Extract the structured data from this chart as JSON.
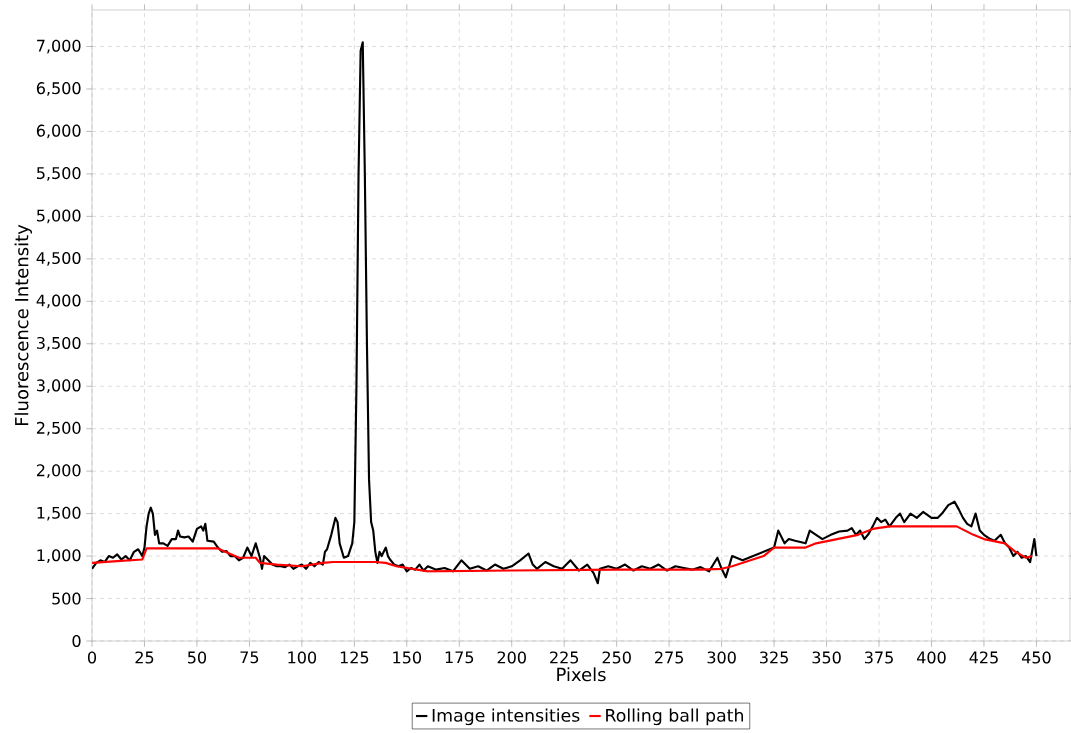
{
  "chart_data": {
    "type": "line",
    "xlabel": "Pixels",
    "ylabel": "Fluorescence Intensity",
    "xlim": [
      0,
      466
    ],
    "ylim": [
      0,
      7430
    ],
    "xticks": [
      0,
      25,
      50,
      75,
      100,
      125,
      150,
      175,
      200,
      225,
      250,
      275,
      300,
      325,
      350,
      375,
      400,
      425,
      450
    ],
    "yticks": [
      0,
      500,
      {
        "value": 1000,
        "label": "1,000"
      },
      {
        "value": 1500,
        "label": "1,500"
      },
      {
        "value": 2000,
        "label": "2,000"
      },
      {
        "value": 2500,
        "label": "2,500"
      },
      {
        "value": 3000,
        "label": "3,000"
      },
      {
        "value": 3500,
        "label": "3,500"
      },
      {
        "value": 4000,
        "label": "4,000"
      },
      {
        "value": 4500,
        "label": "4,500"
      },
      {
        "value": 5000,
        "label": "5,000"
      },
      {
        "value": 5500,
        "label": "5,500"
      },
      {
        "value": 6000,
        "label": "6,000"
      },
      {
        "value": 6500,
        "label": "6,500"
      },
      {
        "value": 7000,
        "label": "7,000"
      }
    ],
    "grid": true,
    "legend": "bottom",
    "series": [
      {
        "name": "Image intensities",
        "color": "#000000",
        "x": [
          0,
          2,
          4,
          6,
          8,
          10,
          12,
          14,
          16,
          18,
          20,
          22,
          24,
          25,
          26,
          27,
          28,
          29,
          30,
          31,
          32,
          34,
          36,
          38,
          40,
          41,
          42,
          44,
          46,
          48,
          50,
          52,
          53,
          54,
          55,
          58,
          60,
          62,
          64,
          66,
          68,
          70,
          72,
          74,
          76,
          78,
          80,
          81,
          82,
          84,
          86,
          88,
          90,
          92,
          94,
          96,
          98,
          100,
          102,
          104,
          106,
          108,
          110,
          111,
          112,
          114,
          116,
          117,
          118,
          120,
          122,
          124,
          125,
          126,
          127,
          128,
          129,
          130,
          131,
          132,
          133,
          134,
          135,
          136,
          137,
          138,
          140,
          141,
          142,
          144,
          146,
          148,
          150,
          152,
          154,
          156,
          158,
          160,
          164,
          168,
          172,
          176,
          180,
          184,
          188,
          192,
          196,
          200,
          204,
          208,
          210,
          212,
          216,
          220,
          224,
          228,
          232,
          236,
          239,
          241,
          242,
          246,
          250,
          254,
          258,
          262,
          266,
          270,
          274,
          278,
          282,
          286,
          290,
          294,
          298,
          300,
          302,
          305,
          310,
          315,
          320,
          325,
          327,
          330,
          332,
          335,
          340,
          342,
          345,
          348,
          352,
          356,
          360,
          362,
          364,
          366,
          368,
          370,
          372,
          374,
          376,
          378,
          380,
          383,
          385,
          387,
          390,
          393,
          396,
          400,
          403,
          405,
          408,
          411,
          413,
          415,
          417,
          419,
          421,
          423,
          425,
          428,
          430,
          433,
          435,
          437,
          439,
          441,
          443,
          445,
          447,
          449,
          450
        ],
        "values": [
          850,
          920,
          950,
          930,
          1000,
          980,
          1020,
          960,
          1000,
          950,
          1050,
          1080,
          1000,
          1100,
          1350,
          1500,
          1570,
          1500,
          1250,
          1300,
          1150,
          1150,
          1120,
          1200,
          1200,
          1300,
          1230,
          1220,
          1230,
          1170,
          1320,
          1350,
          1300,
          1380,
          1180,
          1170,
          1100,
          1050,
          1060,
          1000,
          1000,
          950,
          980,
          1100,
          1000,
          1150,
          980,
          850,
          1000,
          950,
          900,
          880,
          880,
          870,
          900,
          850,
          880,
          900,
          850,
          920,
          880,
          930,
          900,
          1050,
          1080,
          1250,
          1450,
          1400,
          1150,
          980,
          1000,
          1150,
          1400,
          3000,
          5500,
          6950,
          7050,
          5500,
          3500,
          1900,
          1400,
          1300,
          1050,
          920,
          1050,
          1000,
          1100,
          1000,
          960,
          900,
          880,
          900,
          820,
          860,
          840,
          900,
          830,
          880,
          840,
          860,
          820,
          950,
          850,
          880,
          830,
          900,
          850,
          880,
          950,
          1030,
          900,
          850,
          930,
          880,
          850,
          950,
          830,
          900,
          800,
          680,
          850,
          880,
          850,
          900,
          830,
          880,
          850,
          900,
          830,
          880,
          860,
          840,
          870,
          820,
          980,
          850,
          750,
          1000,
          950,
          1000,
          1050,
          1100,
          1300,
          1150,
          1200,
          1180,
          1150,
          1300,
          1250,
          1200,
          1250,
          1290,
          1300,
          1330,
          1250,
          1300,
          1200,
          1260,
          1350,
          1450,
          1400,
          1430,
          1350,
          1450,
          1500,
          1400,
          1500,
          1450,
          1520,
          1450,
          1450,
          1500,
          1600,
          1640,
          1550,
          1450,
          1380,
          1350,
          1500,
          1300,
          1250,
          1200,
          1180,
          1250,
          1150,
          1100,
          1000,
          1050,
          980,
          1000,
          930,
          1200,
          1000
        ]
      },
      {
        "name": "Rolling ball path",
        "color": "#ff0000",
        "x": [
          0,
          12,
          24,
          26,
          60,
          70,
          78,
          80,
          88,
          100,
          110,
          115,
          135,
          140,
          145,
          160,
          200,
          250,
          290,
          300,
          305,
          320,
          325,
          340,
          345,
          355,
          365,
          372,
          380,
          412,
          420,
          425,
          435,
          440,
          445,
          448
        ],
        "values": [
          920,
          940,
          960,
          1090,
          1090,
          980,
          980,
          920,
          900,
          880,
          920,
          930,
          930,
          920,
          880,
          820,
          830,
          840,
          840,
          850,
          880,
          1000,
          1100,
          1100,
          1150,
          1200,
          1250,
          1320,
          1350,
          1350,
          1250,
          1200,
          1150,
          1050,
          980,
          1000
        ]
      }
    ]
  }
}
